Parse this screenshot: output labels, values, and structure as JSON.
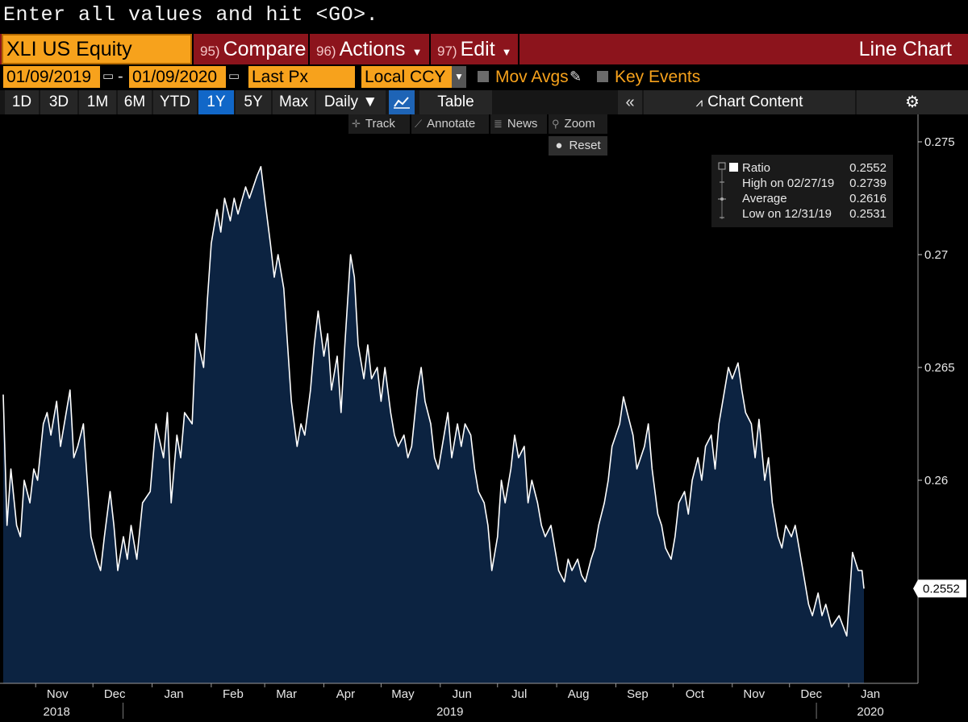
{
  "command_line": "Enter all values and hit <GO>.",
  "header": {
    "security": "XLI US Equity",
    "compare": {
      "num": "95)",
      "label": "Compare"
    },
    "actions": {
      "num": "96)",
      "label": "Actions"
    },
    "edit": {
      "num": "97)",
      "label": "Edit"
    },
    "view_title": "Line Chart"
  },
  "params": {
    "start_date": "01/09/2019",
    "end_date": "01/09/2020",
    "field": "Last Px",
    "currency": "Local CCY",
    "mov_avgs": "Mov Avgs",
    "key_events": "Key Events"
  },
  "periods": [
    "1D",
    "3D",
    "1M",
    "6M",
    "YTD",
    "1Y",
    "5Y",
    "Max"
  ],
  "active_period": "1Y",
  "frequency": "Daily ▼",
  "table_label": "Table",
  "chart_content_label": "Chart Content",
  "tools": {
    "track": "Track",
    "annotate": "Annotate",
    "news": "News",
    "zoom": "Zoom",
    "reset": "Reset"
  },
  "legend": {
    "ratio_label": "Ratio",
    "ratio_value": "0.2552",
    "high_label": "High on 02/27/19",
    "high_value": "0.2739",
    "avg_label": "Average",
    "avg_value": "0.2616",
    "low_label": "Low on 12/31/19",
    "low_value": "0.2531"
  },
  "colors": {
    "line": "#ffffff",
    "fill": "#0c2341",
    "accent": "#f7a21c",
    "header_red": "#8c141c"
  },
  "chart_data": {
    "type": "area",
    "series": [
      {
        "name": "Ratio"
      }
    ],
    "y_ticks": [
      0.26,
      0.265,
      0.27,
      0.275
    ],
    "y_tick_labels": [
      "0.26",
      "0.265",
      "0.27",
      "0.275"
    ],
    "ylim": [
      0.251,
      0.276
    ],
    "last_value_label": "0.2552",
    "month_labels": [
      "Nov",
      "Dec",
      "Jan",
      "Feb",
      "Mar",
      "Apr",
      "May",
      "Jun",
      "Jul",
      "Aug",
      "Sep",
      "Oct",
      "Nov",
      "Dec",
      "Jan"
    ],
    "month_dates": [
      "2018-11-01",
      "2018-12-01",
      "2019-01-01",
      "2019-02-01",
      "2019-03-01",
      "2019-04-01",
      "2019-05-01",
      "2019-06-01",
      "2019-07-01",
      "2019-08-01",
      "2019-09-01",
      "2019-10-01",
      "2019-11-01",
      "2019-12-01",
      "2020-01-01"
    ],
    "year_labels": [
      {
        "text": "2018",
        "date": "2018-11-01"
      },
      {
        "text": "2019",
        "date": "2019-06-01"
      },
      {
        "text": "2020",
        "date": "2020-01-01"
      }
    ],
    "points": [
      [
        "2018-10-15",
        0.2638
      ],
      [
        "2018-10-17",
        0.258
      ],
      [
        "2018-10-19",
        0.2605
      ],
      [
        "2018-10-22",
        0.258
      ],
      [
        "2018-10-24",
        0.2575
      ],
      [
        "2018-10-26",
        0.26
      ],
      [
        "2018-10-29",
        0.259
      ],
      [
        "2018-10-31",
        0.2605
      ],
      [
        "2018-11-02",
        0.26
      ],
      [
        "2018-11-05",
        0.2625
      ],
      [
        "2018-11-07",
        0.263
      ],
      [
        "2018-11-09",
        0.262
      ],
      [
        "2018-11-12",
        0.2635
      ],
      [
        "2018-11-14",
        0.2615
      ],
      [
        "2018-11-16",
        0.2625
      ],
      [
        "2018-11-19",
        0.264
      ],
      [
        "2018-11-21",
        0.261
      ],
      [
        "2018-11-23",
        0.2615
      ],
      [
        "2018-11-26",
        0.2625
      ],
      [
        "2018-11-28",
        0.26
      ],
      [
        "2018-11-30",
        0.2575
      ],
      [
        "2018-12-03",
        0.2565
      ],
      [
        "2018-12-05",
        0.256
      ],
      [
        "2018-12-07",
        0.2575
      ],
      [
        "2018-12-10",
        0.2595
      ],
      [
        "2018-12-12",
        0.258
      ],
      [
        "2018-12-14",
        0.256
      ],
      [
        "2018-12-17",
        0.2575
      ],
      [
        "2018-12-19",
        0.2565
      ],
      [
        "2018-12-21",
        0.258
      ],
      [
        "2018-12-24",
        0.2565
      ],
      [
        "2018-12-27",
        0.259
      ],
      [
        "2018-12-31",
        0.2595
      ],
      [
        "2019-01-03",
        0.2625
      ],
      [
        "2019-01-07",
        0.261
      ],
      [
        "2019-01-09",
        0.263
      ],
      [
        "2019-01-11",
        0.259
      ],
      [
        "2019-01-14",
        0.262
      ],
      [
        "2019-01-16",
        0.261
      ],
      [
        "2019-01-18",
        0.263
      ],
      [
        "2019-01-22",
        0.2625
      ],
      [
        "2019-01-24",
        0.2665
      ],
      [
        "2019-01-28",
        0.265
      ],
      [
        "2019-01-30",
        0.268
      ],
      [
        "2019-02-01",
        0.2705
      ],
      [
        "2019-02-04",
        0.272
      ],
      [
        "2019-02-06",
        0.271
      ],
      [
        "2019-02-08",
        0.2725
      ],
      [
        "2019-02-11",
        0.2715
      ],
      [
        "2019-02-13",
        0.2725
      ],
      [
        "2019-02-15",
        0.2718
      ],
      [
        "2019-02-19",
        0.273
      ],
      [
        "2019-02-21",
        0.2725
      ],
      [
        "2019-02-25",
        0.2735
      ],
      [
        "2019-02-27",
        0.2739
      ],
      [
        "2019-03-01",
        0.2725
      ],
      [
        "2019-03-04",
        0.2705
      ],
      [
        "2019-03-06",
        0.269
      ],
      [
        "2019-03-08",
        0.27
      ],
      [
        "2019-03-11",
        0.2685
      ],
      [
        "2019-03-13",
        0.266
      ],
      [
        "2019-03-15",
        0.2635
      ],
      [
        "2019-03-18",
        0.2615
      ],
      [
        "2019-03-20",
        0.2625
      ],
      [
        "2019-03-22",
        0.262
      ],
      [
        "2019-03-25",
        0.264
      ],
      [
        "2019-03-27",
        0.266
      ],
      [
        "2019-03-29",
        0.2675
      ],
      [
        "2019-04-01",
        0.2655
      ],
      [
        "2019-04-03",
        0.2665
      ],
      [
        "2019-04-05",
        0.264
      ],
      [
        "2019-04-08",
        0.2655
      ],
      [
        "2019-04-10",
        0.263
      ],
      [
        "2019-04-12",
        0.266
      ],
      [
        "2019-04-15",
        0.27
      ],
      [
        "2019-04-17",
        0.269
      ],
      [
        "2019-04-19",
        0.266
      ],
      [
        "2019-04-22",
        0.2645
      ],
      [
        "2019-04-24",
        0.266
      ],
      [
        "2019-04-26",
        0.2645
      ],
      [
        "2019-04-29",
        0.265
      ],
      [
        "2019-05-01",
        0.2635
      ],
      [
        "2019-05-03",
        0.265
      ],
      [
        "2019-05-06",
        0.263
      ],
      [
        "2019-05-08",
        0.262
      ],
      [
        "2019-05-10",
        0.2615
      ],
      [
        "2019-05-13",
        0.262
      ],
      [
        "2019-05-15",
        0.261
      ],
      [
        "2019-05-17",
        0.2615
      ],
      [
        "2019-05-20",
        0.264
      ],
      [
        "2019-05-22",
        0.265
      ],
      [
        "2019-05-24",
        0.2635
      ],
      [
        "2019-05-27",
        0.2625
      ],
      [
        "2019-05-29",
        0.261
      ],
      [
        "2019-05-31",
        0.2605
      ],
      [
        "2019-06-03",
        0.262
      ],
      [
        "2019-06-05",
        0.263
      ],
      [
        "2019-06-07",
        0.261
      ],
      [
        "2019-06-10",
        0.2625
      ],
      [
        "2019-06-12",
        0.2615
      ],
      [
        "2019-06-14",
        0.2625
      ],
      [
        "2019-06-17",
        0.262
      ],
      [
        "2019-06-19",
        0.2605
      ],
      [
        "2019-06-21",
        0.2595
      ],
      [
        "2019-06-24",
        0.259
      ],
      [
        "2019-06-26",
        0.258
      ],
      [
        "2019-06-28",
        0.256
      ],
      [
        "2019-07-01",
        0.2575
      ],
      [
        "2019-07-03",
        0.26
      ],
      [
        "2019-07-05",
        0.259
      ],
      [
        "2019-07-08",
        0.2605
      ],
      [
        "2019-07-10",
        0.262
      ],
      [
        "2019-07-12",
        0.261
      ],
      [
        "2019-07-15",
        0.2615
      ],
      [
        "2019-07-17",
        0.259
      ],
      [
        "2019-07-19",
        0.26
      ],
      [
        "2019-07-22",
        0.259
      ],
      [
        "2019-07-24",
        0.258
      ],
      [
        "2019-07-26",
        0.2575
      ],
      [
        "2019-07-29",
        0.258
      ],
      [
        "2019-07-31",
        0.257
      ],
      [
        "2019-08-02",
        0.256
      ],
      [
        "2019-08-05",
        0.2555
      ],
      [
        "2019-08-07",
        0.2565
      ],
      [
        "2019-08-09",
        0.256
      ],
      [
        "2019-08-12",
        0.2565
      ],
      [
        "2019-08-14",
        0.2558
      ],
      [
        "2019-08-16",
        0.2555
      ],
      [
        "2019-08-19",
        0.2565
      ],
      [
        "2019-08-21",
        0.257
      ],
      [
        "2019-08-23",
        0.258
      ],
      [
        "2019-08-26",
        0.259
      ],
      [
        "2019-08-28",
        0.26
      ],
      [
        "2019-08-30",
        0.2615
      ],
      [
        "2019-09-03",
        0.2625
      ],
      [
        "2019-09-05",
        0.2637
      ],
      [
        "2019-09-07",
        0.263
      ],
      [
        "2019-09-10",
        0.262
      ],
      [
        "2019-09-12",
        0.2605
      ],
      [
        "2019-09-16",
        0.2615
      ],
      [
        "2019-09-18",
        0.2625
      ],
      [
        "2019-09-20",
        0.2605
      ],
      [
        "2019-09-23",
        0.2585
      ],
      [
        "2019-09-25",
        0.258
      ],
      [
        "2019-09-27",
        0.257
      ],
      [
        "2019-09-30",
        0.2565
      ],
      [
        "2019-10-02",
        0.2575
      ],
      [
        "2019-10-04",
        0.259
      ],
      [
        "2019-10-07",
        0.2595
      ],
      [
        "2019-10-09",
        0.2585
      ],
      [
        "2019-10-11",
        0.26
      ],
      [
        "2019-10-14",
        0.261
      ],
      [
        "2019-10-16",
        0.26
      ],
      [
        "2019-10-18",
        0.2615
      ],
      [
        "2019-10-21",
        0.262
      ],
      [
        "2019-10-23",
        0.2605
      ],
      [
        "2019-10-25",
        0.2625
      ],
      [
        "2019-10-28",
        0.264
      ],
      [
        "2019-10-30",
        0.265
      ],
      [
        "2019-11-01",
        0.2645
      ],
      [
        "2019-11-04",
        0.2652
      ],
      [
        "2019-11-06",
        0.264
      ],
      [
        "2019-11-08",
        0.263
      ],
      [
        "2019-11-11",
        0.2625
      ],
      [
        "2019-11-13",
        0.261
      ],
      [
        "2019-11-15",
        0.2627
      ],
      [
        "2019-11-18",
        0.26
      ],
      [
        "2019-11-20",
        0.261
      ],
      [
        "2019-11-22",
        0.259
      ],
      [
        "2019-11-25",
        0.2575
      ],
      [
        "2019-11-27",
        0.257
      ],
      [
        "2019-11-29",
        0.258
      ],
      [
        "2019-12-02",
        0.2575
      ],
      [
        "2019-12-04",
        0.258
      ],
      [
        "2019-12-06",
        0.257
      ],
      [
        "2019-12-09",
        0.2555
      ],
      [
        "2019-12-11",
        0.2545
      ],
      [
        "2019-12-13",
        0.254
      ],
      [
        "2019-12-16",
        0.255
      ],
      [
        "2019-12-18",
        0.254
      ],
      [
        "2019-12-20",
        0.2545
      ],
      [
        "2019-12-23",
        0.2535
      ],
      [
        "2019-12-27",
        0.254
      ],
      [
        "2019-12-31",
        0.2531
      ],
      [
        "2020-01-02",
        0.2555
      ],
      [
        "2020-01-03",
        0.2568
      ],
      [
        "2020-01-06",
        0.256
      ],
      [
        "2020-01-08",
        0.256
      ],
      [
        "2020-01-09",
        0.2552
      ]
    ]
  }
}
